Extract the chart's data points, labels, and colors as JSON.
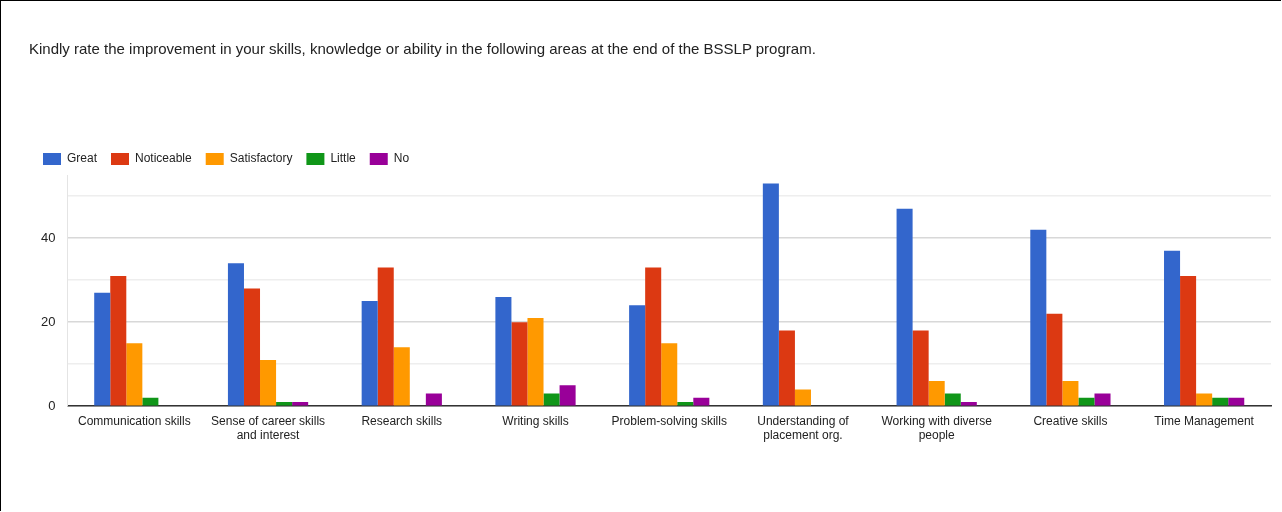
{
  "chart_data": {
    "type": "bar",
    "title": "Kindly rate the improvement in your skills, knowledge or ability in the following areas at the end of the BSSLP program.",
    "categories": [
      "Communication skills",
      "Sense of career skills and interest",
      "Research skills",
      "Writing skills",
      "Problem-solving skills",
      "Understanding of placement org.",
      "Working with diverse people",
      "Creative skills",
      "Time Management"
    ],
    "series": [
      {
        "name": "Great",
        "color": "#3366cc",
        "values": [
          27,
          34,
          25,
          26,
          24,
          53,
          47,
          42,
          37
        ]
      },
      {
        "name": "Noticeable",
        "color": "#dc3912",
        "values": [
          31,
          28,
          33,
          20,
          33,
          18,
          18,
          22,
          31
        ]
      },
      {
        "name": "Satisfactory",
        "color": "#ff9900",
        "values": [
          15,
          11,
          14,
          21,
          15,
          4,
          6,
          6,
          3
        ]
      },
      {
        "name": "Little",
        "color": "#109618",
        "values": [
          2,
          1,
          0,
          3,
          1,
          0,
          3,
          2,
          2
        ]
      },
      {
        "name": "No",
        "color": "#990099",
        "values": [
          0,
          1,
          3,
          5,
          2,
          0,
          1,
          3,
          2
        ]
      }
    ],
    "ylim": [
      0,
      55
    ],
    "yticks": [
      0,
      {
        "value": 10,
        "label": null
      },
      20,
      {
        "value": 30,
        "label": null
      },
      40,
      {
        "value": 50,
        "label": null
      }
    ],
    "grid": "y",
    "legend": "top left"
  }
}
